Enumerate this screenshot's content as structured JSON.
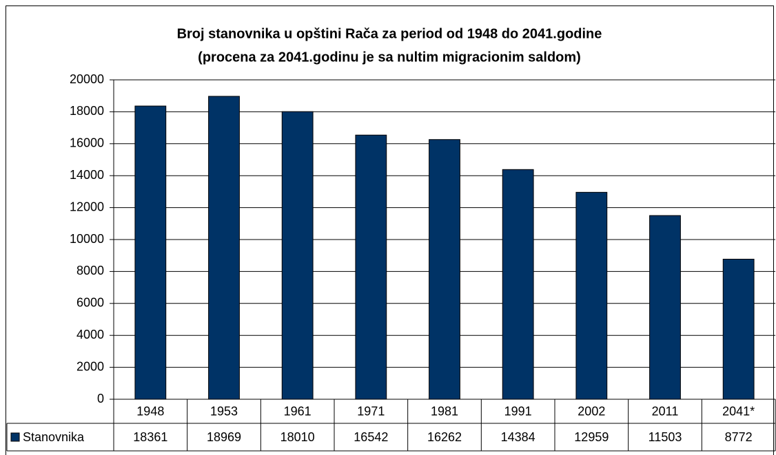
{
  "chart_data": {
    "type": "bar",
    "title": [
      "Broj stanovnika u opštini Rača za period od 1948 do 2041.godine",
      "(procena za 2041.godinu je sa nultim migracionim saldom)"
    ],
    "categories": [
      "1948",
      "1953",
      "1961",
      "1971",
      "1981",
      "1991",
      "2002",
      "2011",
      "2041*"
    ],
    "series": [
      {
        "name": "Stanovnika",
        "color": "#003366",
        "values": [
          18361,
          18969,
          18010,
          16542,
          16262,
          14384,
          12959,
          11503,
          8772
        ]
      }
    ],
    "ylim": [
      0,
      20000
    ],
    "yticks": [
      0,
      2000,
      4000,
      6000,
      8000,
      10000,
      12000,
      14000,
      16000,
      18000,
      20000
    ],
    "grid": true
  }
}
